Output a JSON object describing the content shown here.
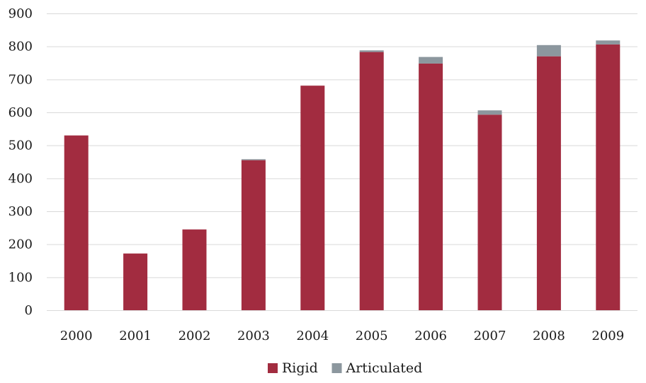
{
  "chart_data": {
    "type": "bar",
    "stacked": true,
    "categories": [
      "2000",
      "2001",
      "2002",
      "2003",
      "2004",
      "2005",
      "2006",
      "2007",
      "2008",
      "2009"
    ],
    "series": [
      {
        "name": "Rigid",
        "color": "#a22c40",
        "values": [
          530,
          172,
          245,
          455,
          681,
          783,
          748,
          593,
          770,
          806
        ]
      },
      {
        "name": "Articulated",
        "color": "#8c979e",
        "values": [
          0,
          0,
          0,
          3,
          0,
          5,
          20,
          13,
          34,
          12
        ]
      }
    ],
    "yticks": [
      "0",
      "100",
      "200",
      "300",
      "400",
      "500",
      "600",
      "700",
      "800",
      "900"
    ],
    "ylim": [
      0,
      900
    ],
    "grid": true,
    "legend_position": "bottom-center",
    "title": "",
    "xlabel": "",
    "ylabel": ""
  }
}
